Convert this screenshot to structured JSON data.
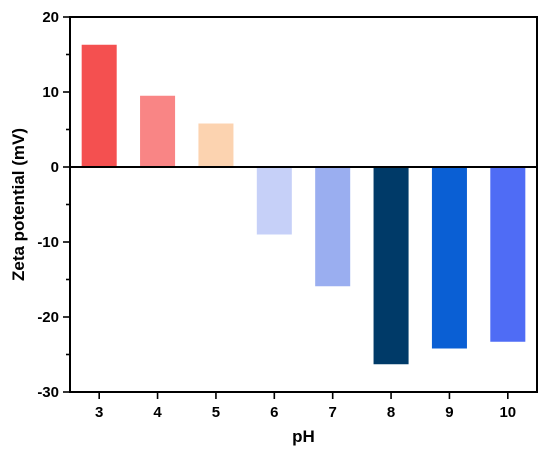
{
  "chart_data": {
    "type": "bar",
    "xlabel": "pH",
    "ylabel": "Zeta potential (mV)",
    "categories": [
      "3",
      "4",
      "5",
      "6",
      "7",
      "8",
      "9",
      "10"
    ],
    "values": [
      16.3,
      9.5,
      5.8,
      -9.0,
      -15.9,
      -26.3,
      -24.2,
      -23.3
    ],
    "colors": [
      "#f45050",
      "#f98585",
      "#fcd3b0",
      "#c6d0f8",
      "#9aaef0",
      "#003a68",
      "#0a5fd4",
      "#4f6cf5"
    ],
    "ylim": [
      -30,
      20
    ],
    "yticks": [
      -30,
      -20,
      -10,
      0,
      10,
      20
    ],
    "grid": false
  }
}
